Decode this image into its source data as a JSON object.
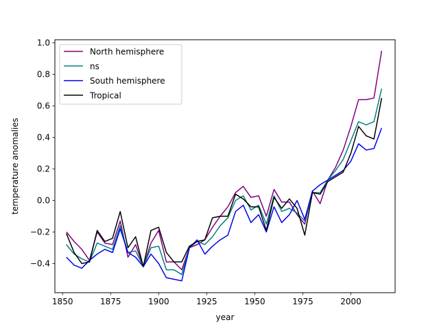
{
  "chart_data": {
    "type": "line",
    "title": "",
    "xlabel": "year",
    "ylabel": "temperature anomalies",
    "xlim": [
      1846,
      2023
    ],
    "ylim": [
      -0.585,
      1.02
    ],
    "xticks": [
      1850,
      1875,
      1900,
      1925,
      1950,
      1975,
      2000
    ],
    "yticks": [
      -0.4,
      -0.2,
      0.0,
      0.2,
      0.4,
      0.6,
      0.8,
      1.0
    ],
    "xtick_labels": [
      "1850",
      "1875",
      "1900",
      "1925",
      "1950",
      "1975",
      "2000"
    ],
    "ytick_labels": [
      "−0.4",
      "−0.2",
      "0.0",
      "0.2",
      "0.4",
      "0.6",
      "0.8",
      "1.0"
    ],
    "grid": false,
    "legend_position": "top-left",
    "x": [
      1852,
      1856,
      1860,
      1864,
      1868,
      1872,
      1876,
      1880,
      1884,
      1888,
      1892,
      1896,
      1900,
      1904,
      1908,
      1912,
      1916,
      1920,
      1924,
      1928,
      1932,
      1936,
      1940,
      1944,
      1948,
      1952,
      1956,
      1960,
      1964,
      1968,
      1972,
      1976,
      1980,
      1984,
      1988,
      1992,
      1996,
      2000,
      2004,
      2008,
      2012,
      2016
    ],
    "series": [
      {
        "name": "North hemisphere",
        "color": "#800080",
        "values": [
          -0.2,
          -0.26,
          -0.31,
          -0.38,
          -0.2,
          -0.27,
          -0.28,
          -0.13,
          -0.36,
          -0.28,
          -0.42,
          -0.27,
          -0.19,
          -0.39,
          -0.39,
          -0.44,
          -0.3,
          -0.28,
          -0.25,
          -0.17,
          -0.1,
          -0.04,
          0.05,
          0.09,
          0.02,
          0.03,
          -0.1,
          0.07,
          -0.01,
          -0.01,
          -0.09,
          -0.15,
          0.06,
          -0.02,
          0.13,
          0.21,
          0.32,
          0.47,
          0.64,
          0.64,
          0.65,
          0.95
        ]
      },
      {
        "name": "ns",
        "color": "#008080",
        "values": [
          -0.28,
          -0.34,
          -0.37,
          -0.39,
          -0.27,
          -0.29,
          -0.31,
          -0.16,
          -0.33,
          -0.32,
          -0.42,
          -0.3,
          -0.29,
          -0.44,
          -0.44,
          -0.47,
          -0.3,
          -0.26,
          -0.28,
          -0.23,
          -0.16,
          -0.11,
          0.0,
          0.03,
          -0.06,
          -0.03,
          -0.15,
          0.03,
          -0.07,
          -0.05,
          -0.08,
          -0.13,
          0.05,
          0.05,
          0.13,
          0.19,
          0.26,
          0.38,
          0.5,
          0.48,
          0.5,
          0.71
        ]
      },
      {
        "name": "South hemisphere",
        "color": "#0000ee",
        "values": [
          -0.36,
          -0.41,
          -0.43,
          -0.38,
          -0.34,
          -0.31,
          -0.33,
          -0.18,
          -0.33,
          -0.36,
          -0.42,
          -0.34,
          -0.4,
          -0.49,
          -0.5,
          -0.51,
          -0.3,
          -0.25,
          -0.34,
          -0.29,
          -0.25,
          -0.22,
          -0.07,
          -0.03,
          -0.14,
          -0.09,
          -0.2,
          -0.04,
          -0.14,
          -0.09,
          0.0,
          -0.12,
          0.06,
          0.1,
          0.13,
          0.16,
          0.19,
          0.25,
          0.36,
          0.32,
          0.33,
          0.46
        ]
      },
      {
        "name": "Tropical",
        "color": "#000000",
        "values": [
          -0.21,
          -0.33,
          -0.4,
          -0.39,
          -0.19,
          -0.26,
          -0.24,
          -0.07,
          -0.3,
          -0.23,
          -0.42,
          -0.19,
          -0.17,
          -0.33,
          -0.39,
          -0.39,
          -0.29,
          -0.26,
          -0.25,
          -0.11,
          -0.1,
          -0.1,
          0.04,
          0.01,
          -0.04,
          -0.04,
          -0.19,
          0.02,
          -0.05,
          0.01,
          -0.05,
          -0.22,
          0.05,
          0.04,
          0.12,
          0.15,
          0.18,
          0.3,
          0.47,
          0.41,
          0.39,
          0.65
        ]
      }
    ]
  }
}
